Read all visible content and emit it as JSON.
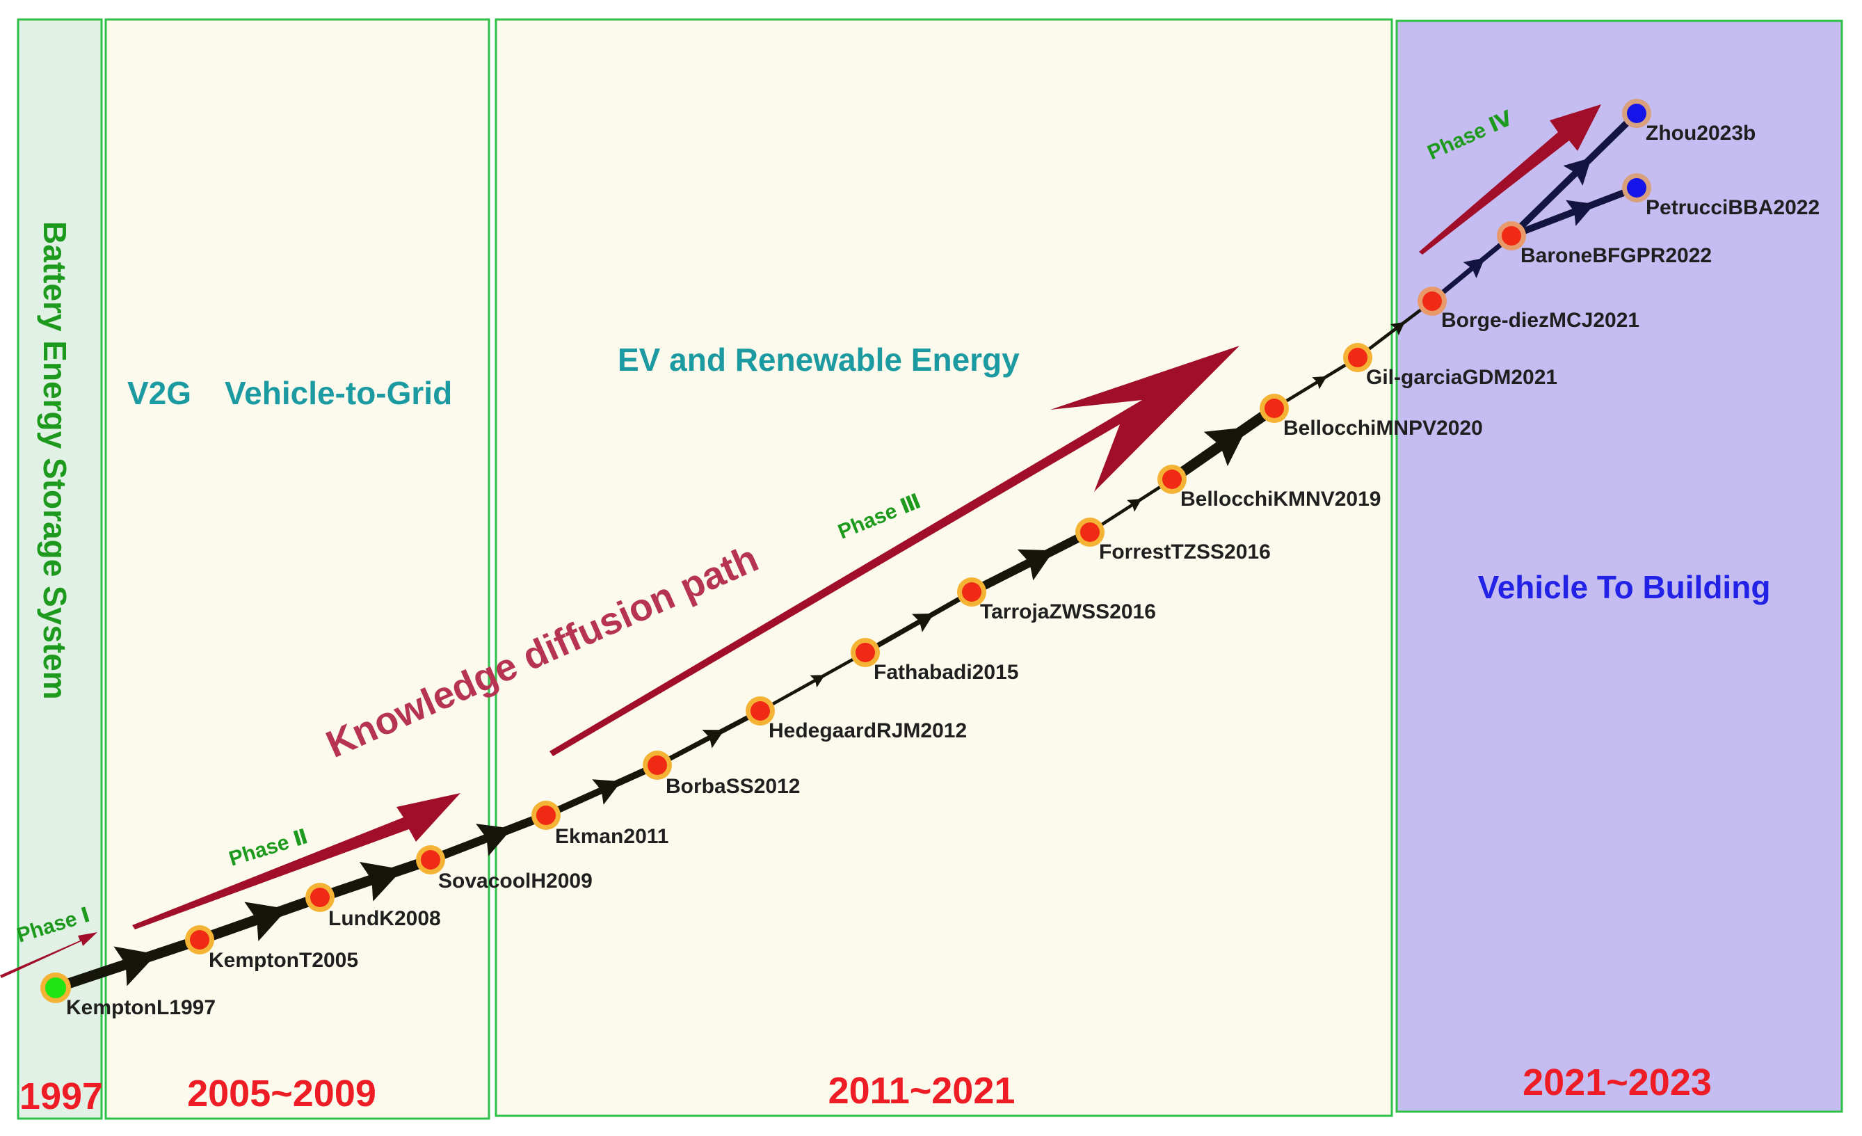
{
  "colors": {
    "panel_1997_fill": "#e2f1e6",
    "panel_mid_fill": "#fbfaec",
    "panel_recent_fill": "#c5bdf1",
    "panel_border": "#2fc04a",
    "year": "#ee1c24",
    "theme_teal": "#1b9aa1",
    "theme_green": "#1d9a1d",
    "theme_blue": "#2222e6",
    "arrow_red": "#a10e2a",
    "path_dark": "#15150c",
    "path_navy": "#141440",
    "node_ring": "#f5b335",
    "node_red": "#f02a14",
    "node_green": "#22e414",
    "node_blue": "#1515ea",
    "node_label": "#1f1f1f"
  },
  "periods": [
    {
      "id": "1997",
      "year_label": "1997",
      "theme": "Battery Energy Storage System"
    },
    {
      "id": "2005",
      "year_label": "2005~2009",
      "theme_abbrev": "V2G",
      "theme": "Vehicle-to-Grid"
    },
    {
      "id": "2011",
      "year_label": "2011~2021",
      "theme": "EV and Renewable Energy"
    },
    {
      "id": "2021",
      "year_label": "2021~2023",
      "theme": "Vehicle To Building"
    }
  ],
  "phases": [
    "Phase Ⅰ",
    "Phase Ⅱ",
    "Phase Ⅲ",
    "Phase Ⅳ"
  ],
  "diffusion_label": "Knowledge diffusion path",
  "nodes": [
    {
      "id": "KemptonL1997",
      "label": "KemptonL1997",
      "type": "start"
    },
    {
      "id": "KemptonT2005",
      "label": "KemptonT2005",
      "type": "main"
    },
    {
      "id": "LundK2008",
      "label": "LundK2008",
      "type": "main"
    },
    {
      "id": "SovacoolH2009",
      "label": "SovacoolH2009",
      "type": "main"
    },
    {
      "id": "Ekman2011",
      "label": "Ekman2011",
      "type": "main"
    },
    {
      "id": "BorbaSS2012",
      "label": "BorbaSS2012",
      "type": "main"
    },
    {
      "id": "HedegaardRJM2012",
      "label": "HedegaardRJM2012",
      "type": "main"
    },
    {
      "id": "Fathabadi2015",
      "label": "Fathabadi2015",
      "type": "main"
    },
    {
      "id": "TarrojaZWSS2016",
      "label": "TarrojaZWSS2016",
      "type": "main"
    },
    {
      "id": "ForrestTZSS2016",
      "label": "ForrestTZSS2016",
      "type": "main"
    },
    {
      "id": "BellocchiKMNV2019",
      "label": "BellocchiKMNV2019",
      "type": "main"
    },
    {
      "id": "BellocchiMNPV2020",
      "label": "BellocchiMNPV2020",
      "type": "main"
    },
    {
      "id": "Gil-garciaGDM2021",
      "label": "Gil-garciaGDM2021",
      "type": "main"
    },
    {
      "id": "Borge-diezMCJ2021",
      "label": "Borge-diezMCJ2021",
      "type": "recent"
    },
    {
      "id": "BaroneBFGPR2022",
      "label": "BaroneBFGPR2022",
      "type": "recent"
    },
    {
      "id": "Zhou2023b",
      "label": "Zhou2023b",
      "type": "end"
    },
    {
      "id": "PetrucciBBA2022",
      "label": "PetrucciBBA2022",
      "type": "end"
    }
  ],
  "edges": [
    {
      "from": "KemptonL1997",
      "to": "KemptonT2005",
      "weight": 5
    },
    {
      "from": "KemptonT2005",
      "to": "LundK2008",
      "weight": 5
    },
    {
      "from": "LundK2008",
      "to": "SovacoolH2009",
      "weight": 5
    },
    {
      "from": "SovacoolH2009",
      "to": "Ekman2011",
      "weight": 4
    },
    {
      "from": "Ekman2011",
      "to": "BorbaSS2012",
      "weight": 3
    },
    {
      "from": "BorbaSS2012",
      "to": "HedegaardRJM2012",
      "weight": 2
    },
    {
      "from": "HedegaardRJM2012",
      "to": "Fathabadi2015",
      "weight": 1
    },
    {
      "from": "Fathabadi2015",
      "to": "TarrojaZWSS2016",
      "weight": 2
    },
    {
      "from": "TarrojaZWSS2016",
      "to": "ForrestTZSS2016",
      "weight": 4
    },
    {
      "from": "ForrestTZSS2016",
      "to": "BellocchiKMNV2019",
      "weight": 1
    },
    {
      "from": "BellocchiKMNV2019",
      "to": "BellocchiMNPV2020",
      "weight": 5
    },
    {
      "from": "BellocchiMNPV2020",
      "to": "Gil-garciaGDM2021",
      "weight": 1
    },
    {
      "from": "Gil-garciaGDM2021",
      "to": "Borge-diezMCJ2021",
      "weight": 1
    },
    {
      "from": "Borge-diezMCJ2021",
      "to": "BaroneBFGPR2022",
      "weight": 2
    },
    {
      "from": "BaroneBFGPR2022",
      "to": "Zhou2023b",
      "weight": 3
    },
    {
      "from": "BaroneBFGPR2022",
      "to": "PetrucciBBA2022",
      "weight": 3
    }
  ]
}
